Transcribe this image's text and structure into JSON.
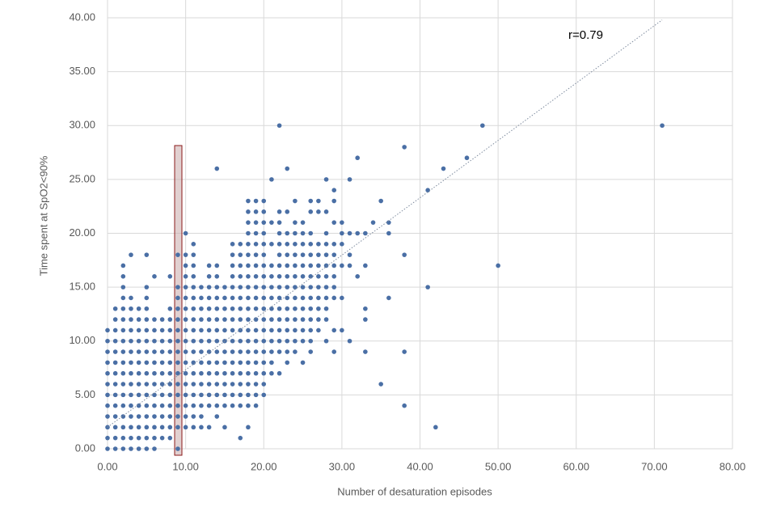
{
  "chart_data": {
    "type": "scatter",
    "x_label": "Number of desaturation episodes",
    "y_label": "Time spent at SpO2<90%",
    "annotation": "r=0.79",
    "color": "#4a6fa5",
    "grid": true,
    "xlim": [
      0,
      80
    ],
    "ylim": [
      0,
      40
    ],
    "xticks": [
      {
        "value": 0,
        "label": "0.00"
      },
      {
        "value": 10,
        "label": "10.00"
      },
      {
        "value": 20,
        "label": "20.00"
      },
      {
        "value": 30,
        "label": "30.00"
      },
      {
        "value": 40,
        "label": "40.00"
      },
      {
        "value": 50,
        "label": "50.00"
      },
      {
        "value": 60,
        "label": "60.00"
      },
      {
        "value": 70,
        "label": "70.00"
      },
      {
        "value": 80,
        "label": "80.00"
      }
    ],
    "yticks": [
      {
        "value": 0,
        "label": "0.00"
      },
      {
        "value": 5,
        "label": "5.00"
      },
      {
        "value": 10,
        "label": "10.00"
      },
      {
        "value": 15,
        "label": "15.00"
      },
      {
        "value": 20,
        "label": "20.00"
      },
      {
        "value": 25,
        "label": "25.00"
      },
      {
        "value": 30,
        "label": "30.00"
      },
      {
        "value": 35,
        "label": "35.00"
      },
      {
        "value": 40,
        "label": "40.00"
      }
    ],
    "trendline": {
      "x": [
        0,
        71
      ],
      "y": [
        2,
        39.8
      ]
    },
    "x": [
      0,
      0,
      0,
      0,
      0,
      0,
      0,
      0,
      0,
      0,
      0,
      0,
      1,
      1,
      1,
      1,
      1,
      1,
      1,
      1,
      1,
      1,
      1,
      1,
      1,
      1,
      2,
      2,
      2,
      2,
      2,
      2,
      2,
      2,
      2,
      2,
      2,
      2,
      2,
      2,
      2,
      2,
      2,
      2,
      3,
      3,
      3,
      3,
      3,
      3,
      3,
      3,
      3,
      3,
      3,
      3,
      3,
      3,
      3,
      3,
      4,
      4,
      4,
      4,
      4,
      4,
      4,
      4,
      4,
      4,
      4,
      4,
      4,
      4,
      5,
      5,
      5,
      5,
      5,
      5,
      5,
      5,
      5,
      5,
      5,
      5,
      5,
      5,
      5,
      5,
      5,
      6,
      6,
      6,
      6,
      6,
      6,
      6,
      6,
      6,
      6,
      6,
      6,
      6,
      6,
      7,
      7,
      7,
      7,
      7,
      7,
      7,
      7,
      7,
      7,
      7,
      7,
      8,
      8,
      8,
      8,
      8,
      8,
      8,
      8,
      8,
      8,
      8,
      8,
      8,
      8,
      9,
      9,
      9,
      9,
      9,
      9,
      9,
      9,
      9,
      9,
      9,
      9,
      9,
      9,
      9,
      9,
      10,
      10,
      10,
      10,
      10,
      10,
      10,
      10,
      10,
      10,
      10,
      10,
      10,
      10,
      10,
      10,
      10,
      10,
      11,
      11,
      11,
      11,
      11,
      11,
      11,
      11,
      11,
      11,
      11,
      11,
      11,
      11,
      11,
      11,
      11,
      11,
      12,
      12,
      12,
      12,
      12,
      12,
      12,
      12,
      12,
      12,
      12,
      12,
      12,
      12,
      13,
      13,
      13,
      13,
      13,
      13,
      13,
      13,
      13,
      13,
      13,
      13,
      13,
      13,
      13,
      14,
      14,
      14,
      14,
      14,
      14,
      14,
      14,
      14,
      14,
      14,
      14,
      14,
      14,
      14,
      14,
      15,
      15,
      15,
      15,
      15,
      15,
      15,
      15,
      15,
      15,
      15,
      15,
      15,
      16,
      16,
      16,
      16,
      16,
      16,
      16,
      16,
      16,
      16,
      16,
      16,
      16,
      16,
      16,
      16,
      17,
      17,
      17,
      17,
      17,
      17,
      17,
      17,
      17,
      17,
      17,
      17,
      17,
      17,
      17,
      17,
      17,
      18,
      18,
      18,
      18,
      18,
      18,
      18,
      18,
      18,
      18,
      18,
      18,
      18,
      18,
      18,
      18,
      18,
      18,
      18,
      18,
      18,
      19,
      19,
      19,
      19,
      19,
      19,
      19,
      19,
      19,
      19,
      19,
      19,
      19,
      19,
      19,
      19,
      19,
      19,
      19,
      19,
      20,
      20,
      20,
      20,
      20,
      20,
      20,
      20,
      20,
      20,
      20,
      20,
      20,
      20,
      20,
      20,
      20,
      20,
      20,
      21,
      21,
      21,
      21,
      21,
      21,
      21,
      21,
      21,
      21,
      21,
      21,
      21,
      21,
      22,
      22,
      22,
      22,
      22,
      22,
      22,
      22,
      22,
      22,
      22,
      22,
      22,
      22,
      22,
      22,
      23,
      23,
      23,
      23,
      23,
      23,
      23,
      23,
      23,
      23,
      23,
      23,
      23,
      23,
      23,
      24,
      24,
      24,
      24,
      24,
      24,
      24,
      24,
      24,
      24,
      24,
      24,
      24,
      24,
      25,
      25,
      25,
      25,
      25,
      25,
      25,
      25,
      25,
      25,
      25,
      25,
      25,
      26,
      26,
      26,
      26,
      26,
      26,
      26,
      26,
      26,
      26,
      26,
      26,
      26,
      26,
      27,
      27,
      27,
      27,
      27,
      27,
      27,
      27,
      27,
      27,
      27,
      28,
      28,
      28,
      28,
      28,
      28,
      28,
      28,
      28,
      28,
      28,
      28,
      29,
      29,
      29,
      29,
      29,
      29,
      29,
      29,
      29,
      29,
      29,
      30,
      30,
      30,
      30,
      30,
      30,
      31,
      31,
      31,
      31,
      31,
      32,
      32,
      32,
      33,
      33,
      33,
      33,
      33,
      34,
      35,
      35,
      36,
      36,
      36,
      38,
      38,
      38,
      38,
      41,
      41,
      42,
      43,
      46,
      48,
      50,
      71
    ],
    "y": [
      0,
      1,
      2,
      3,
      4,
      5,
      6,
      7,
      8,
      9,
      10,
      11,
      0,
      1,
      2,
      3,
      4,
      5,
      6,
      7,
      8,
      9,
      10,
      11,
      12,
      13,
      0,
      1,
      2,
      3,
      4,
      5,
      6,
      7,
      8,
      9,
      10,
      11,
      12,
      13,
      14,
      15,
      16,
      17,
      0,
      1,
      2,
      3,
      4,
      5,
      6,
      7,
      8,
      9,
      10,
      11,
      12,
      13,
      14,
      18,
      0,
      1,
      2,
      3,
      4,
      5,
      6,
      7,
      8,
      9,
      10,
      11,
      12,
      13,
      0,
      1,
      2,
      3,
      4,
      5,
      6,
      7,
      8,
      9,
      10,
      11,
      12,
      13,
      14,
      15,
      18,
      0,
      1,
      2,
      3,
      4,
      5,
      6,
      7,
      8,
      9,
      10,
      11,
      12,
      16,
      1,
      2,
      3,
      4,
      5,
      6,
      7,
      8,
      9,
      10,
      11,
      12,
      1,
      2,
      3,
      4,
      5,
      6,
      7,
      8,
      9,
      10,
      11,
      12,
      13,
      16,
      0,
      2,
      3,
      4,
      5,
      6,
      7,
      8,
      9,
      10,
      11,
      12,
      13,
      14,
      15,
      18,
      2,
      3,
      4,
      5,
      6,
      7,
      8,
      9,
      10,
      11,
      12,
      13,
      14,
      15,
      16,
      17,
      18,
      20,
      2,
      3,
      4,
      5,
      6,
      7,
      8,
      9,
      10,
      11,
      12,
      13,
      14,
      15,
      16,
      17,
      18,
      19,
      2,
      3,
      4,
      5,
      6,
      7,
      8,
      9,
      10,
      11,
      12,
      13,
      14,
      15,
      2,
      4,
      5,
      6,
      7,
      8,
      9,
      10,
      11,
      12,
      13,
      14,
      15,
      16,
      17,
      3,
      4,
      5,
      6,
      7,
      8,
      9,
      10,
      11,
      12,
      13,
      14,
      15,
      16,
      17,
      26,
      2,
      4,
      5,
      6,
      7,
      8,
      9,
      10,
      11,
      12,
      13,
      14,
      15,
      4,
      5,
      6,
      7,
      8,
      9,
      10,
      11,
      12,
      13,
      14,
      15,
      16,
      17,
      18,
      19,
      1,
      4,
      5,
      6,
      7,
      8,
      9,
      10,
      11,
      12,
      13,
      14,
      15,
      16,
      17,
      18,
      19,
      2,
      4,
      5,
      6,
      7,
      8,
      9,
      10,
      11,
      12,
      13,
      14,
      15,
      16,
      17,
      18,
      19,
      20,
      21,
      22,
      23,
      4,
      5,
      6,
      7,
      8,
      9,
      10,
      11,
      12,
      13,
      14,
      15,
      16,
      17,
      18,
      19,
      20,
      21,
      22,
      23,
      5,
      6,
      7,
      8,
      9,
      10,
      11,
      12,
      13,
      14,
      15,
      16,
      17,
      18,
      19,
      20,
      21,
      22,
      23,
      7,
      8,
      9,
      10,
      11,
      12,
      13,
      14,
      15,
      16,
      17,
      19,
      21,
      25,
      7,
      9,
      10,
      11,
      12,
      13,
      14,
      15,
      16,
      17,
      18,
      19,
      20,
      21,
      22,
      30,
      8,
      9,
      10,
      11,
      12,
      13,
      14,
      15,
      16,
      17,
      18,
      19,
      20,
      22,
      26,
      9,
      10,
      11,
      12,
      13,
      14,
      15,
      16,
      17,
      18,
      19,
      20,
      21,
      23,
      8,
      10,
      11,
      12,
      13,
      14,
      15,
      16,
      17,
      18,
      19,
      20,
      21,
      9,
      10,
      11,
      12,
      13,
      14,
      15,
      16,
      17,
      18,
      19,
      20,
      22,
      23,
      11,
      12,
      13,
      14,
      15,
      16,
      17,
      18,
      19,
      22,
      23,
      10,
      12,
      13,
      14,
      15,
      16,
      17,
      18,
      19,
      20,
      22,
      25,
      9,
      11,
      14,
      15,
      16,
      17,
      18,
      19,
      21,
      23,
      24,
      11,
      14,
      17,
      19,
      20,
      21,
      10,
      17,
      18,
      20,
      25,
      16,
      20,
      27,
      9,
      12,
      13,
      17,
      20,
      21,
      6,
      23,
      14,
      20,
      21,
      4,
      9,
      18,
      28,
      15,
      24,
      2,
      26,
      27,
      30,
      17,
      30
    ]
  }
}
